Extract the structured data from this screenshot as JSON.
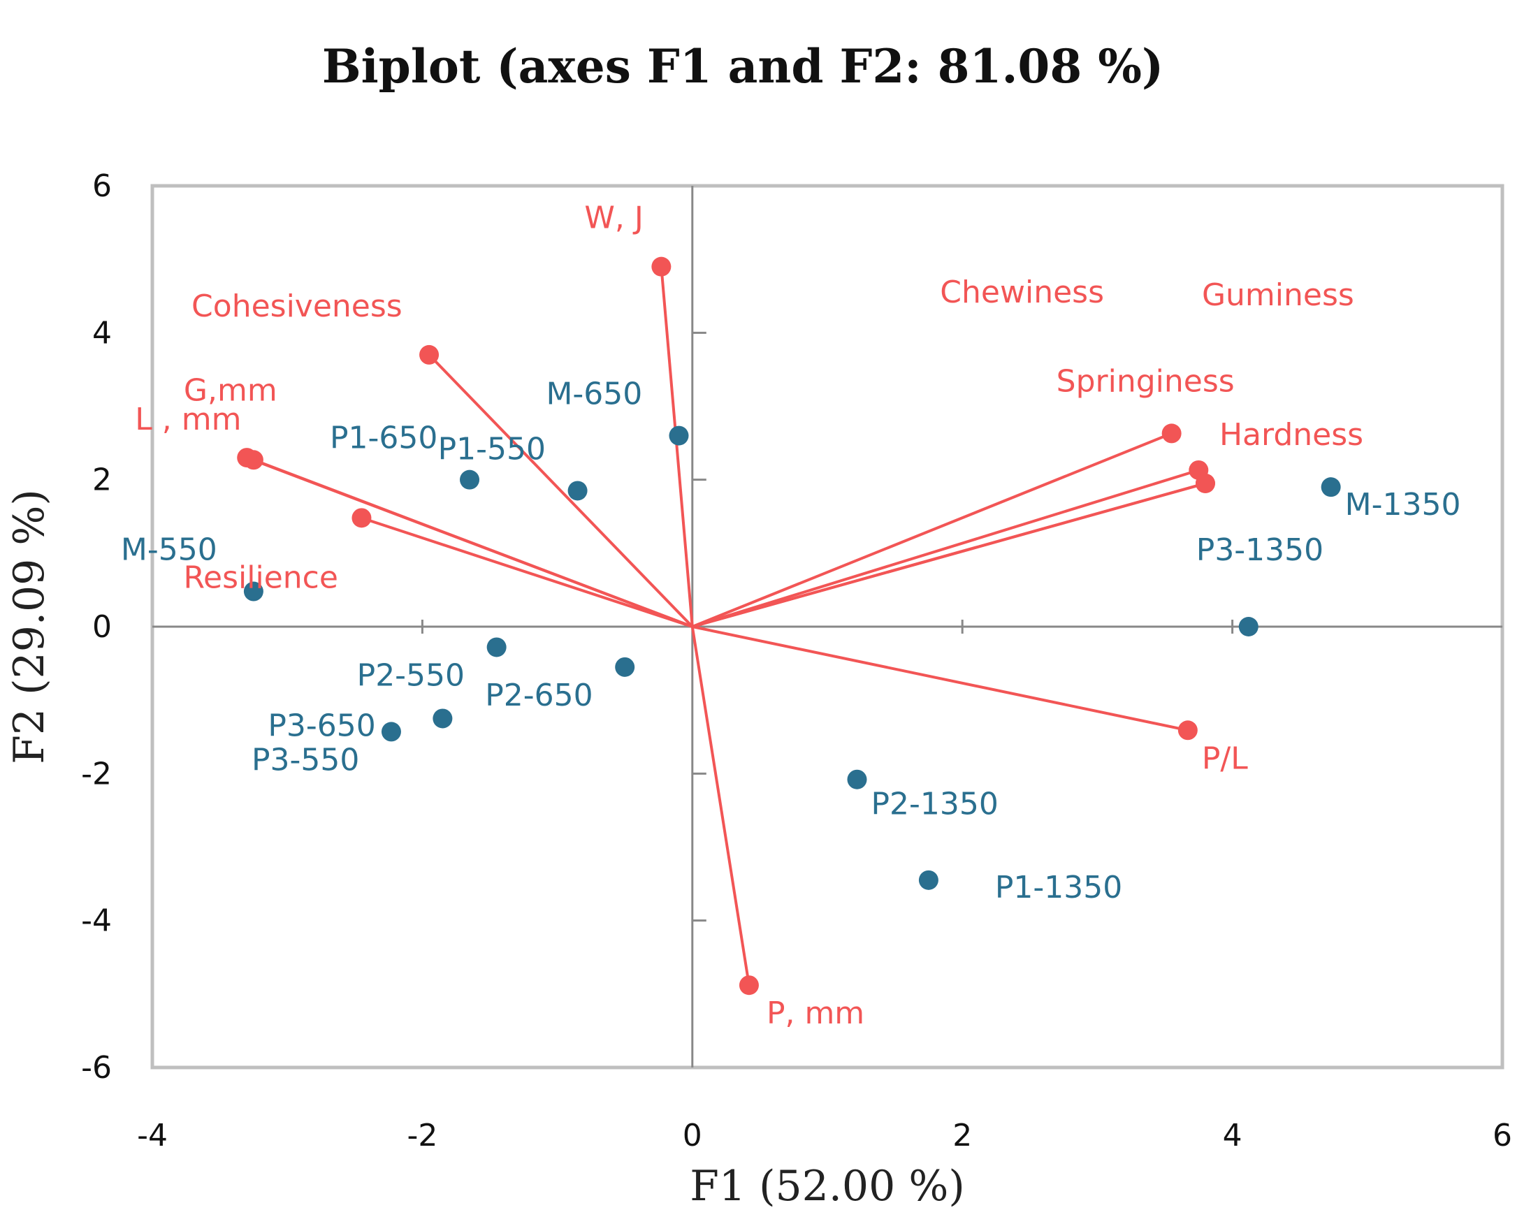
{
  "chart_data": {
    "type": "scatter",
    "title": "Biplot (axes F1 and F2: 81.08 %)",
    "xlabel": "F1 (52.00 %)",
    "ylabel": "F2 (29.09 %)",
    "xlim": [
      -4,
      6
    ],
    "ylim": [
      -6,
      6
    ],
    "xticks": [
      "-4",
      "-2",
      "0",
      "2",
      "4",
      "6"
    ],
    "yticks": [
      "-6",
      "-4",
      "-2",
      "0",
      "2",
      "4",
      "6"
    ],
    "grid": false,
    "colors": {
      "variables": "#f25555",
      "observations": "#2a6f8f",
      "axes": "#888888",
      "frame": "#bfbfbf"
    },
    "variables": [
      {
        "name": "W, J",
        "x": -0.23,
        "y": 4.9
      },
      {
        "name": "Cohesiveness",
        "x": -1.95,
        "y": 3.7
      },
      {
        "name": "G,mm",
        "x": -3.25,
        "y": 2.27
      },
      {
        "name": "L , mm",
        "x": -3.3,
        "y": 2.3
      },
      {
        "name": "Resilience",
        "x": -2.45,
        "y": 1.48
      },
      {
        "name": "Chewiness",
        "x": 3.75,
        "y": 2.13
      },
      {
        "name": "Guminess",
        "x": 3.8,
        "y": 1.95
      },
      {
        "name": "Springiness",
        "x": 3.55,
        "y": 2.63
      },
      {
        "name": "Hardness",
        "x": 3.8,
        "y": 1.95
      },
      {
        "name": "P/L",
        "x": 3.67,
        "y": -1.41
      },
      {
        "name": "P, mm",
        "x": 0.42,
        "y": -4.88
      }
    ],
    "observations": [
      {
        "name": "M-650",
        "x": -0.1,
        "y": 2.6
      },
      {
        "name": "P1-650",
        "x": -1.65,
        "y": 2.0
      },
      {
        "name": "P1-550",
        "x": -0.85,
        "y": 1.85
      },
      {
        "name": "M-550",
        "x": -3.25,
        "y": 0.48
      },
      {
        "name": "P2-550",
        "x": -1.45,
        "y": -0.28
      },
      {
        "name": "P2-650",
        "x": -0.5,
        "y": -0.55
      },
      {
        "name": "P3-650",
        "x": -1.85,
        "y": -1.25
      },
      {
        "name": "P3-550",
        "x": -2.23,
        "y": -1.43
      },
      {
        "name": "M-1350",
        "x": 4.73,
        "y": 1.9
      },
      {
        "name": "P3-1350",
        "x": 4.12,
        "y": 0.0
      },
      {
        "name": "P2-1350",
        "x": 1.22,
        "y": -2.08
      },
      {
        "name": "P1-1350",
        "x": 1.75,
        "y": -3.45
      }
    ]
  }
}
